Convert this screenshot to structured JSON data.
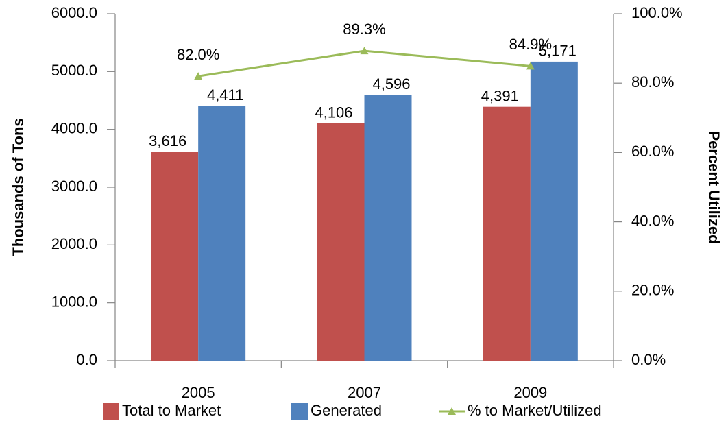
{
  "chart_data": {
    "type": "bar",
    "y_label": "Thousands of Tons",
    "y2_label": "Percent Utilized",
    "categories": [
      "2005",
      "2007",
      "2009"
    ],
    "series": [
      {
        "name": "Total to Market",
        "color": "#c0504d",
        "values": [
          3616,
          4106,
          4391
        ],
        "value_labels": [
          "3,616",
          "4,106",
          "4,391"
        ]
      },
      {
        "name": "Generated",
        "color": "#4f81bd",
        "values": [
          4411,
          4596,
          5171
        ],
        "value_labels": [
          "4,411",
          "4,596",
          "5,171"
        ]
      },
      {
        "name": "% to Market/Utilized",
        "type": "line",
        "axis": "y2",
        "color": "#9bbb59",
        "values": [
          82.0,
          89.3,
          84.9
        ],
        "value_labels": [
          "82.0%",
          "89.3%",
          "84.9%"
        ]
      }
    ],
    "ylim": [
      0,
      6000
    ],
    "yticks": [
      {
        "value": 0,
        "label": "0.0"
      },
      {
        "value": 1000,
        "label": "1000.0"
      },
      {
        "value": 2000,
        "label": "2000.0"
      },
      {
        "value": 3000,
        "label": "3000.0"
      },
      {
        "value": 4000,
        "label": "4000.0"
      },
      {
        "value": 5000,
        "label": "5000.0"
      },
      {
        "value": 6000,
        "label": "6000.0"
      }
    ],
    "y2lim": [
      0,
      100
    ],
    "y2ticks": [
      {
        "value": 0,
        "label": "0.0%"
      },
      {
        "value": 20,
        "label": "20.0%"
      },
      {
        "value": 40,
        "label": "40.0%"
      },
      {
        "value": 60,
        "label": "60.0%"
      },
      {
        "value": 80,
        "label": "80.0%"
      },
      {
        "value": 100,
        "label": "100.0%"
      }
    ],
    "legend": "bottom"
  }
}
